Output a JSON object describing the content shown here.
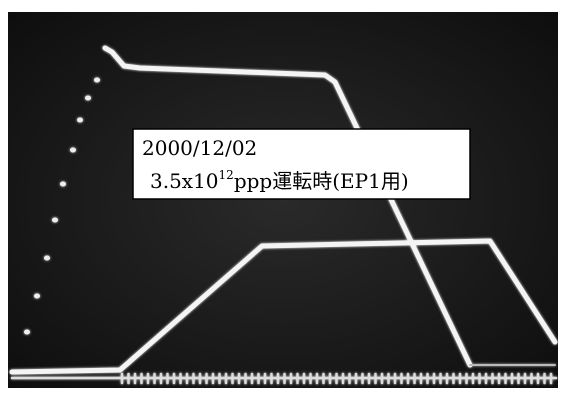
{
  "annotation": {
    "date": "2000/12/02",
    "line2_prefix": "3.5x10",
    "exponent": "12",
    "line2_suffix": "ppp運転時(EP1用)"
  }
}
